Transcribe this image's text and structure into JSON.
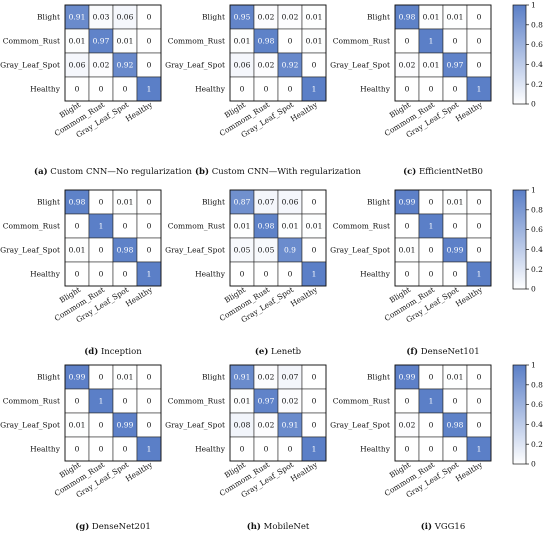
{
  "figure": {
    "colormap": {
      "low": "#ffffff",
      "high": "#5b7fc7"
    },
    "axis_labels": [
      "Blight",
      "Commom_Rust",
      "Gray_Leaf_Spot",
      "Healthy"
    ],
    "colorbar": {
      "ticks": [
        "0",
        "0.2",
        "0.4",
        "0.6",
        "0.8",
        "1"
      ]
    }
  },
  "chart_data": [
    {
      "type": "heatmap",
      "caption_letter": "(a)",
      "caption_text": " Custom CNN—No regularization",
      "rows": [
        "Blight",
        "Commom_Rust",
        "Gray_Leaf_Spot",
        "Healthy"
      ],
      "cols": [
        "Blight",
        "Commom_Rust",
        "Gray_Leaf_Spot",
        "Healthy"
      ],
      "values": [
        [
          0.91,
          0.03,
          0.06,
          0
        ],
        [
          0.01,
          0.97,
          0.01,
          0
        ],
        [
          0.06,
          0.02,
          0.92,
          0
        ],
        [
          0,
          0,
          0,
          1
        ]
      ],
      "zlim": [
        0,
        1
      ]
    },
    {
      "type": "heatmap",
      "caption_letter": "(b)",
      "caption_text": " Custom CNN—With regularization",
      "rows": [
        "Blight",
        "Commom_Rust",
        "Gray_Leaf_Spot",
        "Healthy"
      ],
      "cols": [
        "Blight",
        "Commom_Rust",
        "Gray_Leaf_Spot",
        "Healthy"
      ],
      "values": [
        [
          0.95,
          0.02,
          0.02,
          0.01
        ],
        [
          0.01,
          0.98,
          0,
          0.01
        ],
        [
          0.06,
          0.02,
          0.92,
          0
        ],
        [
          0,
          0,
          0,
          1
        ]
      ],
      "zlim": [
        0,
        1
      ]
    },
    {
      "type": "heatmap",
      "caption_letter": "(c)",
      "caption_text": " EfficientNetB0",
      "rows": [
        "Blight",
        "Commom_Rust",
        "Gray_Leaf_Spot",
        "Healthy"
      ],
      "cols": [
        "Blight",
        "Commom_Rust",
        "Gray_Leaf_Spot",
        "Healthy"
      ],
      "values": [
        [
          0.98,
          0.01,
          0.01,
          0
        ],
        [
          0,
          1,
          0,
          0
        ],
        [
          0.02,
          0.01,
          0.97,
          0
        ],
        [
          0,
          0,
          0,
          1
        ]
      ],
      "zlim": [
        0,
        1
      ]
    },
    {
      "type": "heatmap",
      "caption_letter": "(d)",
      "caption_text": " Inception",
      "rows": [
        "Blight",
        "Commom_Rust",
        "Gray_Leaf_Spot",
        "Healthy"
      ],
      "cols": [
        "Blight",
        "Commom_Rust",
        "Gray_Leaf_Spot",
        "Healthy"
      ],
      "values": [
        [
          0.98,
          0,
          0.01,
          0
        ],
        [
          0,
          1,
          0,
          0
        ],
        [
          0.01,
          0,
          0.98,
          0
        ],
        [
          0,
          0,
          0,
          1
        ]
      ],
      "zlim": [
        0,
        1
      ]
    },
    {
      "type": "heatmap",
      "caption_letter": "(e)",
      "caption_text": " Lenetb",
      "rows": [
        "Blight",
        "Commom_Rust",
        "Gray_Leaf_Spot",
        "Healthy"
      ],
      "cols": [
        "Blight",
        "Commom_Rust",
        "Gray_Leaf_Spot",
        "Healthy"
      ],
      "values": [
        [
          0.87,
          0.07,
          0.06,
          0
        ],
        [
          0.01,
          0.98,
          0.01,
          0.01
        ],
        [
          0.05,
          0.05,
          0.9,
          0
        ],
        [
          0,
          0,
          0,
          1
        ]
      ],
      "zlim": [
        0,
        1
      ]
    },
    {
      "type": "heatmap",
      "caption_letter": "(f)",
      "caption_text": " DenseNet101",
      "rows": [
        "Blight",
        "Commom_Rust",
        "Gray_Leaf_Spot",
        "Healthy"
      ],
      "cols": [
        "Blight",
        "Commom_Rust",
        "Gray_Leaf_Spot",
        "Healthy"
      ],
      "values": [
        [
          0.99,
          0,
          0.01,
          0
        ],
        [
          0,
          1,
          0,
          0
        ],
        [
          0.01,
          0,
          0.99,
          0
        ],
        [
          0,
          0,
          0,
          1
        ]
      ],
      "zlim": [
        0,
        1
      ]
    },
    {
      "type": "heatmap",
      "caption_letter": "(g)",
      "caption_text": " DenseNet201",
      "rows": [
        "Blight",
        "Commom_Rust",
        "Gray_Leaf_Spot",
        "Healthy"
      ],
      "cols": [
        "Blight",
        "Commom_Rust",
        "Gray_Leaf_Spot",
        "Healthy"
      ],
      "values": [
        [
          0.99,
          0,
          0.01,
          0
        ],
        [
          0,
          1,
          0,
          0
        ],
        [
          0.01,
          0,
          0.99,
          0
        ],
        [
          0,
          0,
          0,
          1
        ]
      ],
      "zlim": [
        0,
        1
      ]
    },
    {
      "type": "heatmap",
      "caption_letter": "(h)",
      "caption_text": " MobileNet",
      "rows": [
        "Blight",
        "Commom_Rust",
        "Gray_Leaf_Spot",
        "Healthy"
      ],
      "cols": [
        "Blight",
        "Commom_Rust",
        "Gray_Leaf_Spot",
        "Healthy"
      ],
      "values": [
        [
          0.91,
          0.02,
          0.07,
          0
        ],
        [
          0.01,
          0.97,
          0.02,
          0
        ],
        [
          0.08,
          0.02,
          0.91,
          0
        ],
        [
          0,
          0,
          0,
          1
        ]
      ],
      "zlim": [
        0,
        1
      ]
    },
    {
      "type": "heatmap",
      "caption_letter": "(i)",
      "caption_text": " VGG16",
      "rows": [
        "Blight",
        "Commom_Rust",
        "Gray_Leaf_Spot",
        "Healthy"
      ],
      "cols": [
        "Blight",
        "Commom_Rust",
        "Gray_Leaf_Spot",
        "Healthy"
      ],
      "values": [
        [
          0.99,
          0,
          0.01,
          0
        ],
        [
          0,
          1,
          0,
          0
        ],
        [
          0.02,
          0,
          0.98,
          0
        ],
        [
          0,
          0,
          0,
          1
        ]
      ],
      "zlim": [
        0,
        1
      ]
    }
  ]
}
